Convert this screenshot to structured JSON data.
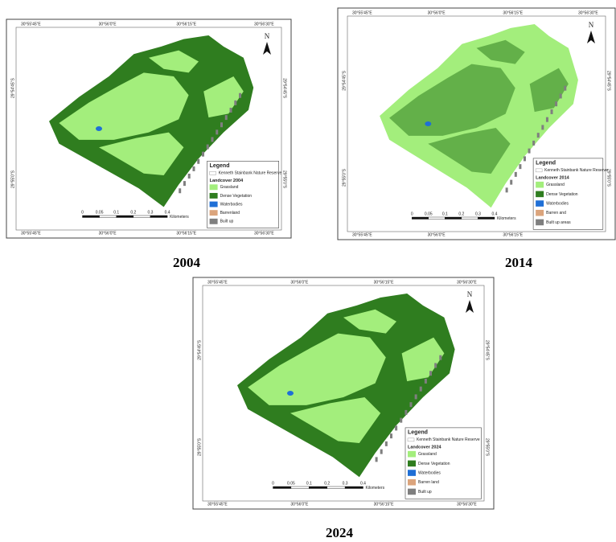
{
  "panels": [
    {
      "caption": "2004",
      "north": "N",
      "top_labels": [
        "30°55'45\"E",
        "30°56'0\"E",
        "30°56'15\"E",
        "30°56'30\"E"
      ],
      "bottom_labels": [
        "30°55'45\"E",
        "30°56'0\"E",
        "30°56'15\"E",
        "30°56'30\"E"
      ],
      "left_labels": [
        "29°54'45\"S",
        "29°55'0\"S"
      ],
      "right_labels": [
        "29°54'45\"S",
        "29°55'0\"S"
      ],
      "legend": {
        "title": "Legend",
        "reserve": "Kenneth Stainbank Nature Reserve",
        "heading": "Landcover 2004",
        "items": [
          {
            "label": "Grassland",
            "color": "#a3ee7c"
          },
          {
            "label": "Dense Vegetation",
            "color": "#2f7d1f"
          },
          {
            "label": "Waterbodies",
            "color": "#1f6fd6"
          },
          {
            "label": "Barrenland",
            "color": "#dba47c"
          },
          {
            "label": "Built up",
            "color": "#7f7f7f"
          }
        ]
      },
      "scale": {
        "ticks": [
          "0",
          "0.05",
          "0.1",
          "0.2",
          "0.3",
          "0.4"
        ],
        "unit": "Kilometers"
      }
    },
    {
      "caption": "2014",
      "north": "N",
      "top_labels": [
        "30°55'45\"E",
        "30°56'0\"E",
        "30°56'15\"E",
        "30°56'30\"E"
      ],
      "bottom_labels": [
        "30°55'45\"E",
        "30°56'0\"E",
        "30°56'15\"E"
      ],
      "left_labels": [
        "29°54'45\"S",
        "29°55'0\"S"
      ],
      "right_labels": [
        "29°54'45\"S",
        "29°55'0\"S"
      ],
      "legend": {
        "title": "Legend",
        "reserve": "Kenneth Stainbank Nature Reserve",
        "heading": "Landcover 2014",
        "items": [
          {
            "label": "Grassland",
            "color": "#a3ee7c"
          },
          {
            "label": "Dense Vegetation",
            "color": "#2f7d1f"
          },
          {
            "label": "Waterbodies",
            "color": "#1f6fd6"
          },
          {
            "label": "Barren and",
            "color": "#dba47c"
          },
          {
            "label": "Built up areas",
            "color": "#7f7f7f"
          }
        ]
      },
      "scale": {
        "ticks": [
          "0",
          "0.05",
          "0.1",
          "0.2",
          "0.3",
          "0.4"
        ],
        "unit": "Kilometers"
      }
    },
    {
      "caption": "2024",
      "north": "N",
      "top_labels": [
        "30°55'45\"E",
        "30°56'0\"E",
        "30°56'15\"E",
        "30°56'30\"E"
      ],
      "bottom_labels": [
        "30°55'45\"E",
        "30°56'0\"E",
        "30°56'15\"E",
        "30°56'30\"E"
      ],
      "left_labels": [
        "29°54'45\"S",
        "29°55'0\"S"
      ],
      "right_labels": [
        "29°54'45\"S",
        "29°55'0\"S"
      ],
      "legend": {
        "title": "Legend",
        "reserve": "Kenneth Stainbank Nature Reserve",
        "heading": "Landcover 2024",
        "items": [
          {
            "label": "Grassland",
            "color": "#a3ee7c"
          },
          {
            "label": "Dense Vegetation",
            "color": "#2f7d1f"
          },
          {
            "label": "Waterbodies",
            "color": "#1f6fd6"
          },
          {
            "label": "Barren land",
            "color": "#dba47c"
          },
          {
            "label": "Built up",
            "color": "#7f7f7f"
          }
        ]
      },
      "scale": {
        "ticks": [
          "0",
          "0.05",
          "0.1",
          "0.2",
          "0.3",
          "0.4"
        ],
        "unit": "Kilometers"
      }
    }
  ]
}
